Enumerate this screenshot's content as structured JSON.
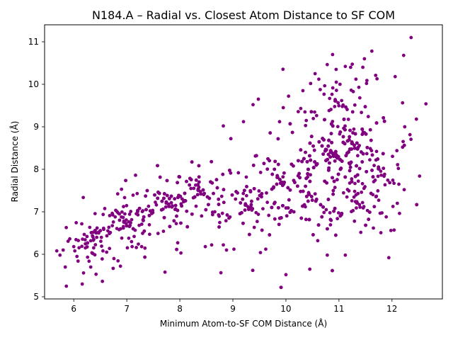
{
  "chart_data": {
    "type": "scatter",
    "title": "N184.A – Radial vs. Closest Atom Distance to SF COM",
    "xlabel": "Minimum Atom-to-SF COM Distance (Å)",
    "ylabel": "Radial Distance (Å)",
    "xlim": [
      5.45,
      12.95
    ],
    "ylim": [
      4.95,
      11.4
    ],
    "xticks": [
      6,
      7,
      8,
      9,
      10,
      11,
      12
    ],
    "yticks": [
      5,
      6,
      7,
      8,
      9,
      10,
      11
    ],
    "grid": false,
    "legend": "none",
    "marker_color": "#800080",
    "clusters": [
      {
        "center": [
          6.2,
          6.3
        ],
        "spread": [
          0.3,
          0.28
        ],
        "count": 45
      },
      {
        "center": [
          7.0,
          6.75
        ],
        "spread": [
          0.35,
          0.35
        ],
        "count": 90
      },
      {
        "center": [
          7.8,
          7.2
        ],
        "spread": [
          0.35,
          0.32
        ],
        "count": 130
      },
      {
        "center": [
          8.4,
          7.5
        ],
        "spread": [
          0.35,
          0.35
        ],
        "count": 100
      },
      {
        "center": [
          9.3,
          7.15
        ],
        "spread": [
          0.4,
          0.4
        ],
        "count": 80
      },
      {
        "center": [
          9.9,
          7.8
        ],
        "spread": [
          0.4,
          0.55
        ],
        "count": 110
      },
      {
        "center": [
          10.5,
          7.4
        ],
        "spread": [
          0.45,
          0.55
        ],
        "count": 130
      },
      {
        "center": [
          10.9,
          8.4
        ],
        "spread": [
          0.35,
          0.4
        ],
        "count": 230
      },
      {
        "center": [
          11.3,
          8.6
        ],
        "spread": [
          0.35,
          0.45
        ],
        "count": 140
      },
      {
        "center": [
          11.0,
          9.6
        ],
        "spread": [
          0.45,
          0.45
        ],
        "count": 50
      },
      {
        "center": [
          11.4,
          7.2
        ],
        "spread": [
          0.4,
          0.4
        ],
        "count": 70
      },
      {
        "center": [
          11.8,
          8.0
        ],
        "spread": [
          0.35,
          0.6
        ],
        "count": 45
      }
    ],
    "points": [
      [
        5.68,
        6.08
      ],
      [
        5.74,
        5.98
      ],
      [
        5.8,
        6.1
      ],
      [
        5.86,
        5.25
      ],
      [
        5.84,
        5.7
      ],
      [
        6.0,
        6.18
      ],
      [
        6.02,
        6.08
      ],
      [
        6.06,
        5.95
      ],
      [
        6.16,
        5.3
      ],
      [
        6.32,
        5.7
      ],
      [
        6.42,
        5.53
      ],
      [
        6.55,
        6.08
      ],
      [
        6.62,
        6.05
      ],
      [
        6.88,
        5.72
      ],
      [
        7.1,
        6.18
      ],
      [
        7.18,
        6.16
      ],
      [
        7.28,
        6.18
      ],
      [
        7.72,
        5.58
      ],
      [
        8.02,
        6.03
      ],
      [
        7.96,
        6.27
      ],
      [
        8.48,
        6.18
      ],
      [
        8.6,
        6.22
      ],
      [
        8.82,
        6.22
      ],
      [
        8.82,
        9.02
      ],
      [
        8.88,
        6.1
      ],
      [
        9.02,
        6.12
      ],
      [
        9.2,
        9.12
      ],
      [
        9.38,
        9.52
      ],
      [
        9.48,
        9.65
      ],
      [
        9.52,
        6.04
      ],
      [
        9.62,
        6.12
      ],
      [
        9.88,
        9.12
      ],
      [
        9.95,
        9.45
      ],
      [
        10.0,
        5.52
      ],
      [
        10.05,
        9.72
      ],
      [
        10.32,
        9.85
      ],
      [
        10.45,
        5.65
      ],
      [
        10.55,
        10.25
      ],
      [
        10.62,
        10.12
      ],
      [
        10.88,
        10.7
      ],
      [
        10.95,
        10.05
      ],
      [
        11.02,
        10.0
      ],
      [
        11.12,
        10.42
      ],
      [
        11.22,
        10.4
      ],
      [
        11.32,
        10.12
      ],
      [
        11.45,
        10.4
      ],
      [
        11.48,
        10.6
      ],
      [
        11.62,
        10.78
      ],
      [
        11.52,
        10.02
      ],
      [
        12.06,
        10.18
      ],
      [
        12.22,
        10.68
      ],
      [
        12.36,
        11.1
      ],
      [
        12.64,
        9.54
      ],
      [
        12.52,
        7.84
      ],
      [
        12.46,
        9.18
      ],
      [
        12.12,
        8.02
      ],
      [
        12.2,
        8.52
      ],
      [
        12.24,
        9.0
      ],
      [
        11.94,
        5.92
      ],
      [
        11.98,
        6.56
      ],
      [
        12.04,
        6.57
      ],
      [
        10.78,
        5.98
      ],
      [
        11.12,
        5.98
      ],
      [
        10.6,
        6.32
      ],
      [
        12.1,
        7.2
      ]
    ]
  }
}
